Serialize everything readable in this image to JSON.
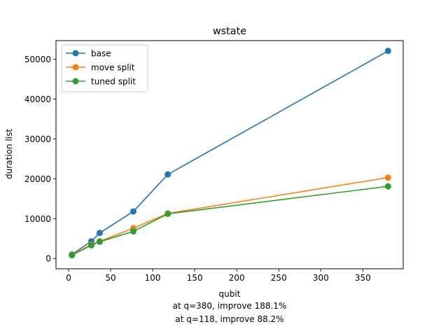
{
  "chart_data": {
    "type": "line",
    "title": "wstate",
    "xlabel": "qubit",
    "ylabel": "duration list",
    "xlim": [
      -15,
      398
    ],
    "ylim": [
      -2600,
      54700
    ],
    "xticks": [
      0,
      50,
      100,
      150,
      200,
      250,
      300,
      350
    ],
    "yticks": [
      0,
      10000,
      20000,
      30000,
      40000,
      50000
    ],
    "grid": false,
    "legend_position": "top-left",
    "series": [
      {
        "name": "base",
        "color": "#1f77b4",
        "x": [
          4,
          27,
          37,
          77,
          118,
          380
        ],
        "y": [
          1000,
          4300,
          6400,
          11800,
          21100,
          52100
        ]
      },
      {
        "name": "move split",
        "color": "#ff7f0e",
        "x": [
          4,
          27,
          37,
          77,
          118,
          380
        ],
        "y": [
          900,
          3500,
          4300,
          7600,
          11300,
          20300
        ]
      },
      {
        "name": "tuned split",
        "color": "#2ca02c",
        "x": [
          4,
          27,
          37,
          77,
          118,
          380
        ],
        "y": [
          800,
          3300,
          4200,
          6800,
          11200,
          18100
        ]
      }
    ],
    "annotations": [
      "at q=380, improve 188.1%",
      "at q=118, improve 88.2%"
    ]
  }
}
